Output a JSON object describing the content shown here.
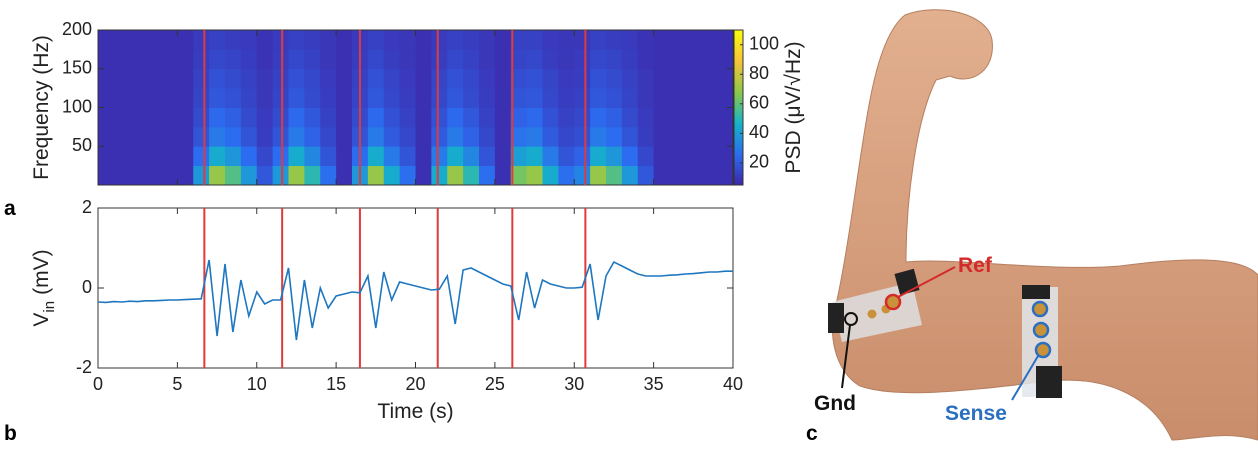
{
  "chart_data": [
    {
      "type": "heatmap",
      "ylabel": "Frequency (Hz)",
      "colorbar_label": "PSD (μV/√Hz)",
      "xbins": [
        0,
        1,
        2,
        3,
        4,
        5,
        6,
        7,
        8,
        9,
        10,
        11,
        12,
        13,
        14,
        15,
        16,
        17,
        18,
        19,
        20,
        21,
        22,
        23,
        24,
        25,
        26,
        27,
        28,
        29,
        30,
        31,
        32,
        33,
        34,
        35,
        36,
        37,
        38,
        39,
        40
      ],
      "ybins": [
        0,
        25,
        50,
        75,
        100,
        125,
        150,
        175,
        200
      ],
      "z": [
        [
          8,
          8,
          8,
          8,
          8,
          8,
          39,
          70,
          58,
          39,
          20,
          39,
          70,
          51,
          27,
          8,
          39,
          70,
          45,
          27,
          8,
          45,
          70,
          51,
          27,
          8,
          64,
          70,
          45,
          27,
          33,
          70,
          58,
          39,
          20,
          8,
          8,
          8,
          8,
          8
        ],
        [
          8,
          8,
          8,
          8,
          8,
          8,
          26,
          45,
          38,
          26,
          15,
          26,
          45,
          34,
          19,
          8,
          26,
          45,
          30,
          19,
          8,
          30,
          45,
          34,
          19,
          8,
          41,
          45,
          30,
          19,
          23,
          45,
          38,
          26,
          15,
          8,
          8,
          8,
          8,
          8
        ],
        [
          8,
          8,
          8,
          8,
          8,
          8,
          19,
          30,
          26,
          19,
          12,
          19,
          30,
          23,
          15,
          8,
          19,
          30,
          21,
          15,
          8,
          21,
          30,
          23,
          15,
          8,
          28,
          30,
          21,
          15,
          17,
          30,
          26,
          19,
          12,
          8,
          8,
          8,
          8,
          8
        ],
        [
          8,
          8,
          8,
          8,
          8,
          8,
          16,
          25,
          22,
          16,
          11,
          16,
          25,
          20,
          13,
          8,
          16,
          25,
          18,
          13,
          8,
          18,
          25,
          20,
          13,
          8,
          23,
          25,
          18,
          13,
          15,
          25,
          22,
          16,
          11,
          8,
          8,
          8,
          8,
          8
        ],
        [
          8,
          8,
          8,
          8,
          8,
          8,
          14,
          20,
          18,
          14,
          10,
          14,
          20,
          16,
          12,
          8,
          14,
          20,
          15,
          12,
          8,
          15,
          20,
          16,
          12,
          8,
          19,
          20,
          15,
          12,
          13,
          20,
          18,
          14,
          10,
          8,
          8,
          8,
          8,
          8
        ],
        [
          8,
          8,
          8,
          8,
          8,
          8,
          13,
          18,
          16,
          13,
          10,
          13,
          18,
          15,
          11,
          8,
          13,
          18,
          14,
          11,
          8,
          14,
          18,
          15,
          11,
          8,
          17,
          18,
          14,
          11,
          12,
          18,
          16,
          13,
          10,
          8,
          8,
          8,
          8,
          8
        ],
        [
          8,
          8,
          8,
          8,
          8,
          8,
          12,
          15,
          14,
          12,
          9,
          12,
          15,
          13,
          10,
          8,
          12,
          15,
          12,
          10,
          8,
          12,
          15,
          13,
          10,
          8,
          14,
          15,
          12,
          10,
          11,
          15,
          14,
          12,
          9,
          8,
          8,
          8,
          8,
          8
        ],
        [
          8,
          8,
          8,
          8,
          8,
          8,
          11,
          13,
          12,
          11,
          9,
          11,
          13,
          12,
          10,
          8,
          11,
          13,
          11,
          10,
          8,
          11,
          13,
          12,
          10,
          8,
          13,
          13,
          11,
          10,
          10,
          13,
          12,
          11,
          9,
          8,
          8,
          8,
          8,
          8
        ]
      ],
      "xlim": [
        0,
        40
      ],
      "xticks": [
        0,
        5,
        10,
        15,
        20,
        25,
        30,
        35,
        40
      ],
      "ylim": [
        0,
        200
      ],
      "yticks": [
        50,
        100,
        150,
        200
      ],
      "clim": [
        5,
        110
      ],
      "cticks": [
        20,
        40,
        60,
        80,
        100
      ],
      "colormap": [
        "#3e26a8",
        "#2c6cf0",
        "#15b3c9",
        "#8cc84a",
        "#f6c23a",
        "#f9fb0e"
      ],
      "events": [
        6.7,
        11.6,
        16.5,
        21.4,
        26.1,
        30.7
      ],
      "event_color": "#e03b3b"
    },
    {
      "type": "line",
      "xlabel": "Time (s)",
      "ylabel": "V",
      "ylabel_sub": "in",
      "ylabel_unit": "(mV)",
      "x": [
        0,
        0.5,
        1,
        1.5,
        2,
        2.5,
        3,
        3.5,
        4,
        4.5,
        5,
        5.5,
        6,
        6.5,
        7,
        7.5,
        8,
        8.5,
        9,
        9.5,
        10,
        10.5,
        11,
        11.5,
        12,
        12.5,
        13,
        13.5,
        14,
        14.5,
        15,
        15.5,
        16,
        16.5,
        17,
        17.5,
        18,
        18.5,
        19,
        19.5,
        20,
        20.5,
        21,
        21.5,
        22,
        22.5,
        23,
        23.5,
        24,
        24.5,
        25,
        25.5,
        26,
        26.5,
        27,
        27.5,
        28,
        28.5,
        29,
        29.5,
        30,
        30.5,
        31,
        31.5,
        32,
        32.5,
        33,
        33.5,
        34,
        34.5,
        35,
        35.5,
        36,
        36.5,
        37,
        37.5,
        38,
        38.5,
        39,
        39.5,
        40
      ],
      "series": [
        {
          "color": "#1f77c0",
          "values": [
            -0.35,
            -0.36,
            -0.34,
            -0.35,
            -0.33,
            -0.34,
            -0.32,
            -0.32,
            -0.31,
            -0.3,
            -0.3,
            -0.29,
            -0.28,
            -0.27,
            0.7,
            -1.2,
            0.6,
            -1.1,
            0.2,
            -0.7,
            -0.1,
            -0.4,
            -0.3,
            -0.3,
            0.5,
            -1.3,
            0.2,
            -1.0,
            0.0,
            -0.5,
            -0.2,
            -0.15,
            -0.1,
            -0.12,
            0.3,
            -1.0,
            0.4,
            -0.3,
            0.15,
            0.1,
            0.05,
            0.0,
            -0.05,
            -0.03,
            0.3,
            -0.9,
            0.45,
            0.5,
            0.4,
            0.3,
            0.2,
            0.1,
            0.05,
            -0.8,
            0.4,
            -0.5,
            0.2,
            0.1,
            0.05,
            0.0,
            0.0,
            0.02,
            0.6,
            -0.8,
            0.3,
            0.65,
            0.55,
            0.45,
            0.35,
            0.3,
            0.3,
            0.3,
            0.32,
            0.33,
            0.35,
            0.36,
            0.38,
            0.4,
            0.4,
            0.42,
            0.42
          ]
        }
      ],
      "xlim": [
        0,
        40
      ],
      "xticks": [
        0,
        5,
        10,
        15,
        20,
        25,
        30,
        35,
        40
      ],
      "ylim": [
        -2,
        2
      ],
      "yticks": [
        -2,
        0,
        2
      ],
      "events": [
        6.7,
        11.6,
        16.5,
        21.4,
        26.1,
        30.7
      ],
      "event_color": "#e03b3b"
    }
  ],
  "panels": [
    "a",
    "b",
    "c"
  ],
  "photo": {
    "ref": "Ref",
    "gnd": "Gnd",
    "sense": "Sense"
  }
}
